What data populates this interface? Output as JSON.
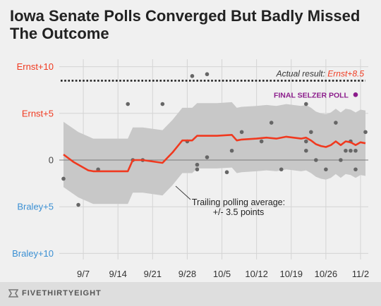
{
  "title": "Iowa Senate Polls Converged But Badly Missed The Outcome",
  "brand": "FIVETHIRTYEIGHT",
  "colors": {
    "background": "#f0f0f0",
    "band": "#c8c8c8",
    "average_line": "#f0391f",
    "points": "#666666",
    "selzer": "#8b1c8b",
    "ernst_label": "#f0391f",
    "braley_label": "#3a8fd3",
    "grid": "#d4d4d4",
    "zero": "#7a7a7a"
  },
  "chart_data": {
    "type": "line",
    "title": "Iowa Senate Polls Converged But Badly Missed The Outcome",
    "y_unit_note": "margin in points; positive = Ernst lead, negative = Braley lead",
    "ylim": [
      -10.5,
      10.5
    ],
    "y_ticks": [
      {
        "value": 10,
        "label": "Ernst+10",
        "color": "#f0391f"
      },
      {
        "value": 5,
        "label": "Ernst+5",
        "color": "#f0391f"
      },
      {
        "value": 0,
        "label": "0",
        "color": "#444444"
      },
      {
        "value": -5,
        "label": "Braley+5",
        "color": "#3a8fd3"
      },
      {
        "value": -10,
        "label": "Braley+10",
        "color": "#3a8fd3"
      }
    ],
    "xlim": [
      "2014-09-03",
      "2014-11-03"
    ],
    "x_ticks": [
      {
        "date": "2014-09-07",
        "label": "9/7"
      },
      {
        "date": "2014-09-14",
        "label": "9/14"
      },
      {
        "date": "2014-09-21",
        "label": "9/21"
      },
      {
        "date": "2014-09-28",
        "label": "9/28"
      },
      {
        "date": "2014-10-05",
        "label": "10/5"
      },
      {
        "date": "2014-10-12",
        "label": "10/12"
      },
      {
        "date": "2014-10-19",
        "label": "10/19"
      },
      {
        "date": "2014-10-26",
        "label": "10/26"
      },
      {
        "date": "2014-11-02",
        "label": "11/2"
      }
    ],
    "grid": true,
    "actual_result": {
      "value": 8.5,
      "label_prefix": "Actual result: ",
      "label_value": "Ernst+8.5"
    },
    "band_label": [
      "Trailing polling average:",
      "+/- 3.5 points"
    ],
    "series": [
      {
        "type": "line",
        "points": [
          [
            "2014-09-03",
            0.6
          ],
          [
            "2014-09-04",
            0.2
          ],
          [
            "2014-09-05",
            -0.2
          ],
          [
            "2014-09-06",
            -0.5
          ],
          [
            "2014-09-07",
            -0.8
          ],
          [
            "2014-09-08",
            -1.1
          ],
          [
            "2014-09-09",
            -1.2
          ],
          [
            "2014-09-10",
            -1.2
          ],
          [
            "2014-09-13",
            -1.2
          ],
          [
            "2014-09-16",
            -1.2
          ],
          [
            "2014-09-17",
            0.0
          ],
          [
            "2014-09-19",
            0.0
          ],
          [
            "2014-09-23",
            -0.3
          ],
          [
            "2014-09-25",
            0.8
          ],
          [
            "2014-09-27",
            2.1
          ],
          [
            "2014-09-29",
            2.1
          ],
          [
            "2014-09-30",
            2.6
          ],
          [
            "2014-10-04",
            2.6
          ],
          [
            "2014-10-07",
            2.7
          ],
          [
            "2014-10-08",
            2.1
          ],
          [
            "2014-10-09",
            2.2
          ],
          [
            "2014-10-12",
            2.3
          ],
          [
            "2014-10-14",
            2.4
          ],
          [
            "2014-10-16",
            2.3
          ],
          [
            "2014-10-18",
            2.5
          ],
          [
            "2014-10-21",
            2.3
          ],
          [
            "2014-10-22",
            2.4
          ],
          [
            "2014-10-23",
            2.1
          ],
          [
            "2014-10-24",
            1.7
          ],
          [
            "2014-10-25",
            1.5
          ],
          [
            "2014-10-26",
            1.4
          ],
          [
            "2014-10-27",
            1.6
          ],
          [
            "2014-10-28",
            2.0
          ],
          [
            "2014-10-29",
            1.6
          ],
          [
            "2014-10-30",
            2.0
          ],
          [
            "2014-10-31",
            1.9
          ],
          [
            "2014-11-01",
            1.6
          ],
          [
            "2014-11-02",
            1.9
          ],
          [
            "2014-11-03",
            1.8
          ]
        ]
      },
      {
        "type": "band",
        "points": [
          [
            "2014-09-03",
            4.1,
            -2.9
          ],
          [
            "2014-09-06",
            3.0,
            -4.0
          ],
          [
            "2014-09-09",
            2.3,
            -4.7
          ],
          [
            "2014-09-16",
            2.3,
            -4.7
          ],
          [
            "2014-09-17",
            3.5,
            -3.5
          ],
          [
            "2014-09-19",
            3.5,
            -3.5
          ],
          [
            "2014-09-23",
            3.2,
            -3.8
          ],
          [
            "2014-09-25",
            4.3,
            -2.7
          ],
          [
            "2014-09-27",
            5.6,
            -1.4
          ],
          [
            "2014-09-29",
            5.6,
            -1.4
          ],
          [
            "2014-09-30",
            6.1,
            -0.9
          ],
          [
            "2014-10-04",
            6.1,
            -0.9
          ],
          [
            "2014-10-07",
            6.2,
            -0.8
          ],
          [
            "2014-10-08",
            5.6,
            -1.4
          ],
          [
            "2014-10-09",
            5.7,
            -1.3
          ],
          [
            "2014-10-12",
            5.8,
            -1.2
          ],
          [
            "2014-10-14",
            5.9,
            -1.1
          ],
          [
            "2014-10-16",
            5.8,
            -1.2
          ],
          [
            "2014-10-18",
            6.0,
            -1.0
          ],
          [
            "2014-10-21",
            5.8,
            -1.2
          ],
          [
            "2014-10-22",
            5.9,
            -1.1
          ],
          [
            "2014-10-23",
            5.6,
            -1.4
          ],
          [
            "2014-10-24",
            5.2,
            -1.8
          ],
          [
            "2014-10-25",
            5.0,
            -2.0
          ],
          [
            "2014-10-26",
            4.9,
            -2.1
          ],
          [
            "2014-10-27",
            5.1,
            -1.9
          ],
          [
            "2014-10-28",
            5.5,
            -1.5
          ],
          [
            "2014-10-29",
            5.1,
            -1.9
          ],
          [
            "2014-10-30",
            5.5,
            -1.5
          ],
          [
            "2014-10-31",
            5.4,
            -1.6
          ],
          [
            "2014-11-01",
            5.1,
            -1.9
          ],
          [
            "2014-11-02",
            5.4,
            -1.6
          ],
          [
            "2014-11-03",
            5.3,
            -1.7
          ]
        ]
      },
      {
        "type": "scatter",
        "points": [
          [
            "2014-09-03",
            -2.0
          ],
          [
            "2014-09-06",
            -4.8
          ],
          [
            "2014-09-10",
            -1.0
          ],
          [
            "2014-09-16",
            6.0
          ],
          [
            "2014-09-17",
            0.0
          ],
          [
            "2014-09-19",
            0.0
          ],
          [
            "2014-09-23",
            6.0
          ],
          [
            "2014-09-28",
            2.0
          ],
          [
            "2014-09-29",
            9.0
          ],
          [
            "2014-09-30",
            -1.0
          ],
          [
            "2014-09-30",
            -0.5
          ],
          [
            "2014-10-02",
            9.2
          ],
          [
            "2014-10-02",
            0.3
          ],
          [
            "2014-10-06",
            -1.3
          ],
          [
            "2014-10-07",
            1.0
          ],
          [
            "2014-10-09",
            3.0
          ],
          [
            "2014-10-13",
            2.0
          ],
          [
            "2014-10-15",
            4.0
          ],
          [
            "2014-10-17",
            -1.0
          ],
          [
            "2014-10-22",
            6.0
          ],
          [
            "2014-10-22",
            2.0
          ],
          [
            "2014-10-22",
            1.0
          ],
          [
            "2014-10-23",
            3.0
          ],
          [
            "2014-10-24",
            0.0
          ],
          [
            "2014-10-26",
            -1.0
          ],
          [
            "2014-10-28",
            4.0
          ],
          [
            "2014-10-29",
            0.0
          ],
          [
            "2014-10-30",
            1.0
          ],
          [
            "2014-10-31",
            1.0
          ],
          [
            "2014-11-01",
            -1.0
          ],
          [
            "2014-11-03",
            3.0
          ],
          [
            "2014-10-31",
            2.0
          ],
          [
            "2014-11-01",
            1.0
          ]
        ]
      },
      {
        "type": "highlight",
        "name": "FINAL SELZER POLL",
        "points": [
          [
            "2014-11-01",
            7.0
          ]
        ]
      }
    ]
  }
}
